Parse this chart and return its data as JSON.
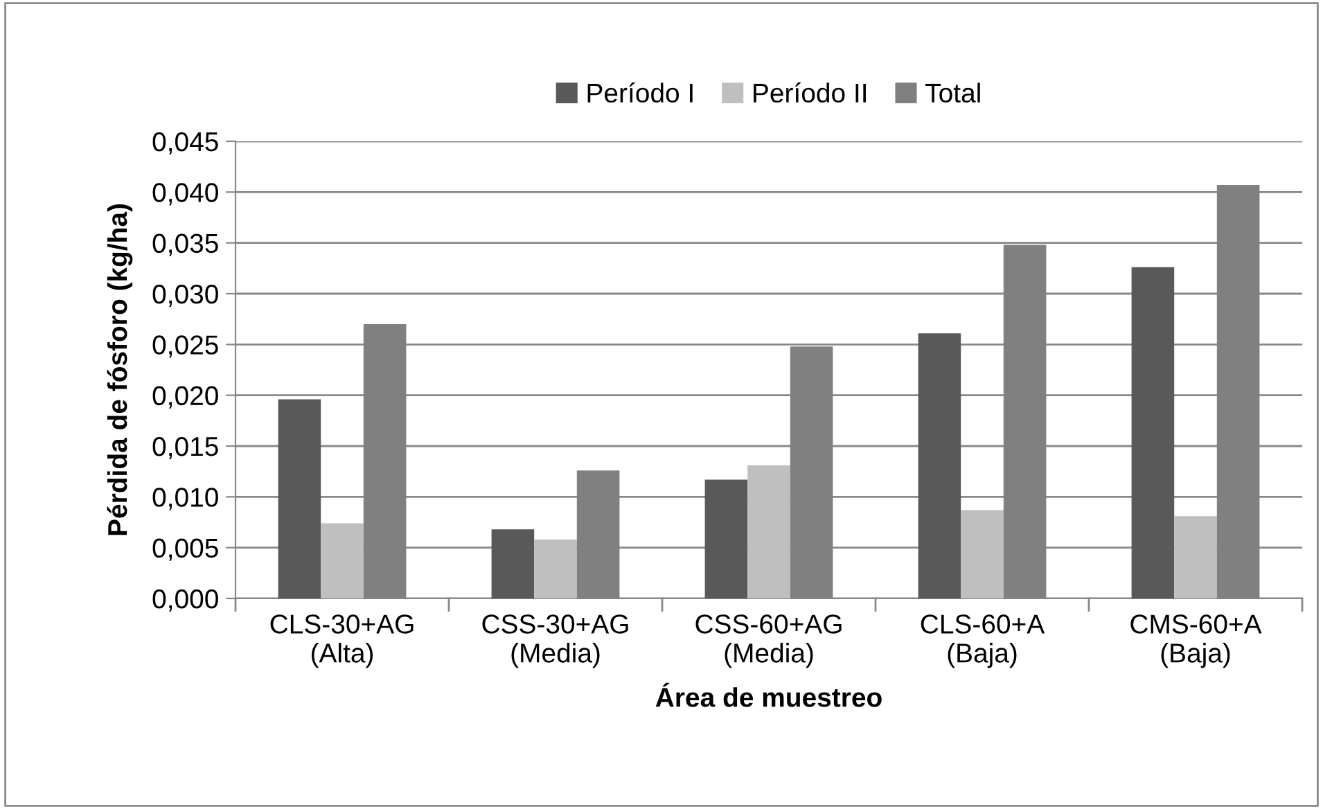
{
  "chart_data": {
    "type": "bar",
    "xlabel": "Área de muestreo",
    "ylabel": "Pérdida de fósforo (kg/ha)",
    "categories": [
      "CLS-30+AG\n(Alta)",
      "CSS-30+AG\n(Media)",
      "CSS-60+AG\n(Media)",
      "CLS-60+A\n(Baja)",
      "CMS-60+A\n(Baja)"
    ],
    "series": [
      {
        "name": "Período I",
        "color": "#595959",
        "values": [
          0.0196,
          0.0068,
          0.0117,
          0.0261,
          0.0326
        ]
      },
      {
        "name": "Período II",
        "color": "#bfbfbf",
        "values": [
          0.0074,
          0.0058,
          0.0131,
          0.0087,
          0.0081
        ]
      },
      {
        "name": "Total",
        "color": "#808080",
        "values": [
          0.027,
          0.0126,
          0.0248,
          0.0348,
          0.0407
        ]
      }
    ],
    "ylim": [
      0,
      0.045
    ],
    "yticks": [
      {
        "value": 0,
        "label": "0,000"
      },
      {
        "value": 0.005,
        "label": "0,005"
      },
      {
        "value": 0.01,
        "label": "0,010"
      },
      {
        "value": 0.015,
        "label": "0,015"
      },
      {
        "value": 0.02,
        "label": "0,020"
      },
      {
        "value": 0.025,
        "label": "0,025"
      },
      {
        "value": 0.03,
        "label": "0,030"
      },
      {
        "value": 0.035,
        "label": "0,035"
      },
      {
        "value": 0.04,
        "label": "0,040"
      },
      {
        "value": 0.045,
        "label": "0,045"
      }
    ],
    "grid": "y",
    "legend": "top"
  }
}
